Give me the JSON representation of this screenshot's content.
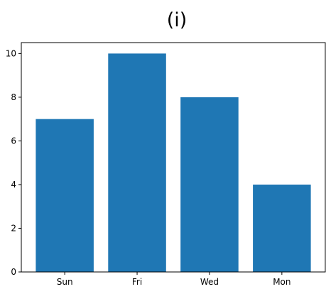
{
  "chart_data": {
    "type": "bar",
    "title": "(i)",
    "xlabel": "",
    "ylabel": "",
    "categories": [
      "Sun",
      "Fri",
      "Wed",
      "Mon"
    ],
    "values": [
      7,
      10,
      8,
      4
    ],
    "ylim": [
      0,
      10.5
    ],
    "yticks": [
      0,
      2,
      4,
      6,
      8,
      10
    ],
    "bar_color": "#1f77b4",
    "grid": false,
    "legend": "none"
  }
}
